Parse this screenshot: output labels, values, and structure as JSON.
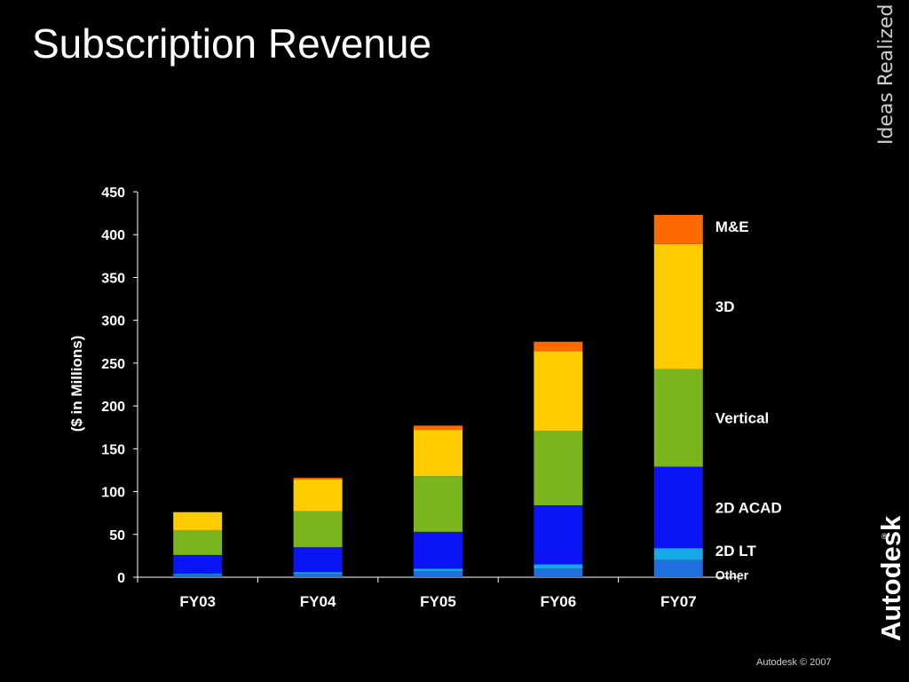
{
  "slide": {
    "title": "Subscription Revenue",
    "tagline": "Ideas Realized",
    "brand": "Autodesk",
    "brand_mark": "®",
    "footer": "Autodesk © 2007"
  },
  "colors": {
    "background": "#000000",
    "Other": "#1f6fe0",
    "2D LT": "#17a8e8",
    "2D ACAD": "#0a14f5",
    "Vertical": "#7ab51d",
    "3D": "#ffcc00",
    "M&E": "#ff6a00"
  },
  "chart_data": {
    "type": "bar",
    "stacked": true,
    "title": "",
    "xlabel": "",
    "ylabel": "($ in Millions)",
    "ylim": [
      0,
      450
    ],
    "yticks": [
      0,
      50,
      100,
      150,
      200,
      250,
      300,
      350,
      400,
      450
    ],
    "grid": false,
    "legend": "inline labels beside FY07 bar",
    "categories": [
      "FY03",
      "FY04",
      "FY05",
      "FY06",
      "FY07"
    ],
    "series": [
      {
        "name": "Other",
        "values": [
          3,
          4,
          7,
          10,
          20
        ]
      },
      {
        "name": "2D LT",
        "values": [
          1,
          2,
          3,
          5,
          14
        ]
      },
      {
        "name": "2D ACAD",
        "values": [
          22,
          29,
          43,
          69,
          95
        ]
      },
      {
        "name": "Vertical",
        "values": [
          29,
          42,
          65,
          87,
          114
        ]
      },
      {
        "name": "3D",
        "values": [
          21,
          37,
          54,
          93,
          146
        ]
      },
      {
        "name": "M&E",
        "values": [
          0,
          2,
          5,
          11,
          34
        ]
      }
    ]
  }
}
